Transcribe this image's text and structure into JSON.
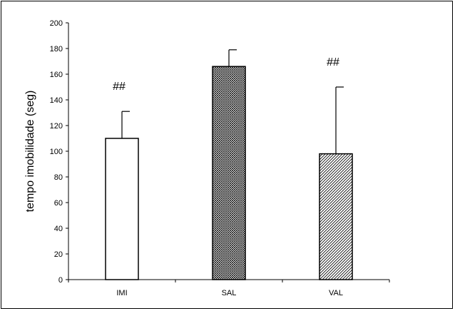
{
  "chart_data": {
    "type": "bar",
    "categories": [
      "IMI",
      "SAL",
      "VAL"
    ],
    "values": [
      110,
      166,
      98
    ],
    "errors": [
      21,
      13,
      52
    ],
    "annotations": [
      "##",
      "",
      "##"
    ],
    "xlabel": "",
    "ylabel": "tempo imobilidade (seg)",
    "ylim": [
      0,
      200
    ],
    "yticks": [
      0,
      20,
      40,
      60,
      80,
      100,
      120,
      140,
      160,
      180,
      200
    ],
    "grid": false,
    "fills": [
      "plain",
      "dense-crosshatch",
      "diagonal-hatch"
    ]
  }
}
